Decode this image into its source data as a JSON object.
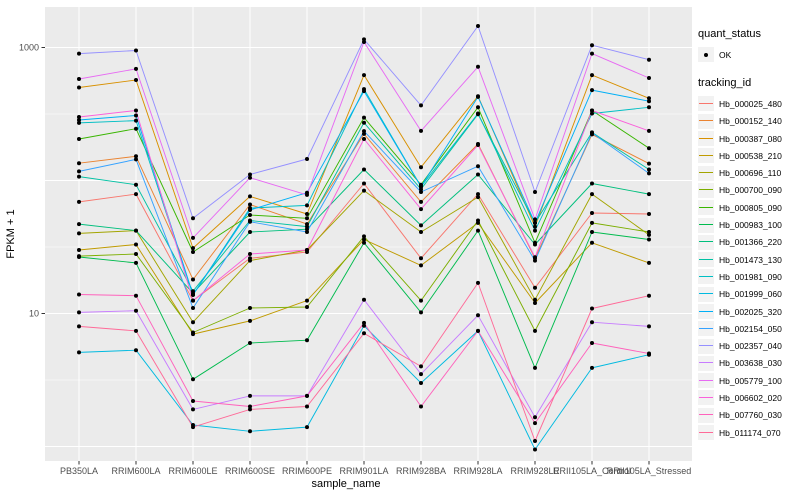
{
  "y_axis": {
    "title": "FPKM + 1",
    "tick_labels": [
      "1000",
      "10"
    ],
    "tick_values": [
      1000,
      10
    ]
  },
  "x_axis": {
    "title": "sample_name"
  },
  "legend": {
    "quant_status_title": "quant_status",
    "quant_status_items": [
      {
        "label": "OK",
        "marker": "point",
        "color": "#000000"
      }
    ],
    "tracking_id_title": "tracking_id"
  },
  "colors": {
    "panel_bg": "#EBEBEB",
    "grid": "#FFFFFF",
    "tick_text": "#4D4D4D",
    "point": "#000000",
    "legend_key_bg": "#F2F2F2"
  },
  "chart_data": {
    "type": "line",
    "title": "",
    "xlabel": "sample_name",
    "ylabel": "FPKM + 1",
    "y_scale": "log10",
    "ylim": [
      0.75,
      2000
    ],
    "y_ticks_labeled": [
      1000,
      10
    ],
    "grid": "major and minor, white on gray panel",
    "legend_position": "right",
    "point_shape": "small black point on every value (quant_status OK)",
    "categories": [
      "PB350LA",
      "RRIM600LA",
      "RRIM600LE",
      "RRIM600SE",
      "RRIM600PE",
      "RRIM901LA",
      "RRIM928BA",
      "RRIM928LA",
      "RRIM928LE",
      "RRII105LA_Control",
      "RRII105LA_Stressed"
    ],
    "series": [
      {
        "name": "Hb_000025_480",
        "color": "#F8766D",
        "values": [
          69,
          79,
          12.5,
          26,
          29,
          95,
          26,
          79,
          15.6,
          57,
          56
        ]
      },
      {
        "name": "Hb_000152_140",
        "color": "#EA8331",
        "values": [
          135,
          152,
          18,
          66,
          47,
          224,
          69,
          188,
          26,
          222,
          134
        ]
      },
      {
        "name": "Hb_000387_080",
        "color": "#D89000",
        "values": [
          500,
          570,
          31,
          76,
          56,
          620,
          126,
          430,
          45,
          620,
          415
        ]
      },
      {
        "name": "Hb_000538_210",
        "color": "#C09B00",
        "values": [
          30,
          33,
          7,
          8.8,
          12.5,
          36,
          23,
          48,
          12,
          34,
          24
        ]
      },
      {
        "name": "Hb_000696_110",
        "color": "#A3A500",
        "values": [
          40,
          42,
          8.6,
          25,
          30,
          84,
          41,
          75,
          12.7,
          79,
          39
        ]
      },
      {
        "name": "Hb_000700_090",
        "color": "#7CAE00",
        "values": [
          27,
          28,
          7.2,
          11,
          11.2,
          38,
          12.5,
          50,
          7.4,
          48,
          41
        ]
      },
      {
        "name": "Hb_000805_090",
        "color": "#39B600",
        "values": [
          205,
          245,
          29,
          55,
          52,
          297,
          93,
          355,
          34,
          336,
          175
        ]
      },
      {
        "name": "Hb_000983_100",
        "color": "#00BB4E",
        "values": [
          26.6,
          24,
          3.2,
          6,
          6.3,
          34,
          10.2,
          42,
          3.9,
          41,
          36
        ]
      },
      {
        "name": "Hb_001366_220",
        "color": "#00BF7D",
        "values": [
          47,
          42,
          14.2,
          41,
          43,
          121,
          46,
          111,
          33,
          95,
          79
        ]
      },
      {
        "name": "Hb_001473_130",
        "color": "#00C1A3",
        "values": [
          107,
          93,
          14.7,
          50,
          45,
          272,
          86,
          315,
          48,
          230,
          121
        ]
      },
      {
        "name": "Hb_001981_090",
        "color": "#00BFC4",
        "values": [
          271,
          282,
          13.8,
          62,
          65,
          487,
          90,
          319,
          42,
          319,
          355
        ]
      },
      {
        "name": "Hb_001999_060",
        "color": "#00BAE0",
        "values": [
          5.1,
          5.3,
          1.45,
          1.3,
          1.4,
          8.1,
          3,
          7.4,
          0.95,
          3.9,
          4.9
        ]
      },
      {
        "name": "Hb_002025_320",
        "color": "#00B0F6",
        "values": [
          285,
          308,
          13.8,
          60,
          81,
          470,
          90,
          425,
          48,
          478,
          395
        ]
      },
      {
        "name": "Hb_002154_050",
        "color": "#35A2FF",
        "values": [
          117,
          144,
          11,
          49,
          41,
          235,
          82,
          128,
          25,
          228,
          113
        ]
      },
      {
        "name": "Hb_002357_040",
        "color": "#9590FF",
        "values": [
          900,
          950,
          52,
          111,
          145,
          1150,
          367,
          1450,
          82,
          1040,
          810
        ]
      },
      {
        "name": "Hb_003638_030",
        "color": "#C77CFF",
        "values": [
          10.2,
          10.5,
          1.9,
          2.4,
          2.4,
          12.7,
          3.5,
          9.7,
          1.66,
          8.6,
          8
        ]
      },
      {
        "name": "Hb_005779_100",
        "color": "#E76BF3",
        "values": [
          580,
          690,
          37,
          105,
          78,
          1100,
          236,
          716,
          51,
          900,
          590
        ]
      },
      {
        "name": "Hb_006602_020",
        "color": "#FA62DB",
        "values": [
          300,
          336,
          12.5,
          28,
          30,
          205,
          61,
          185,
          26.5,
          336,
          236
        ]
      },
      {
        "name": "Hb_007760_030",
        "color": "#FF62BC",
        "values": [
          13.9,
          13.6,
          2.2,
          2,
          2.4,
          8.5,
          2,
          7.4,
          1.5,
          6,
          5
        ]
      },
      {
        "name": "Hb_011174_070",
        "color": "#FF6A98",
        "values": [
          8,
          7.4,
          1.4,
          1.9,
          2,
          7.1,
          4,
          17,
          1.1,
          10.9,
          13.6
        ]
      }
    ]
  }
}
